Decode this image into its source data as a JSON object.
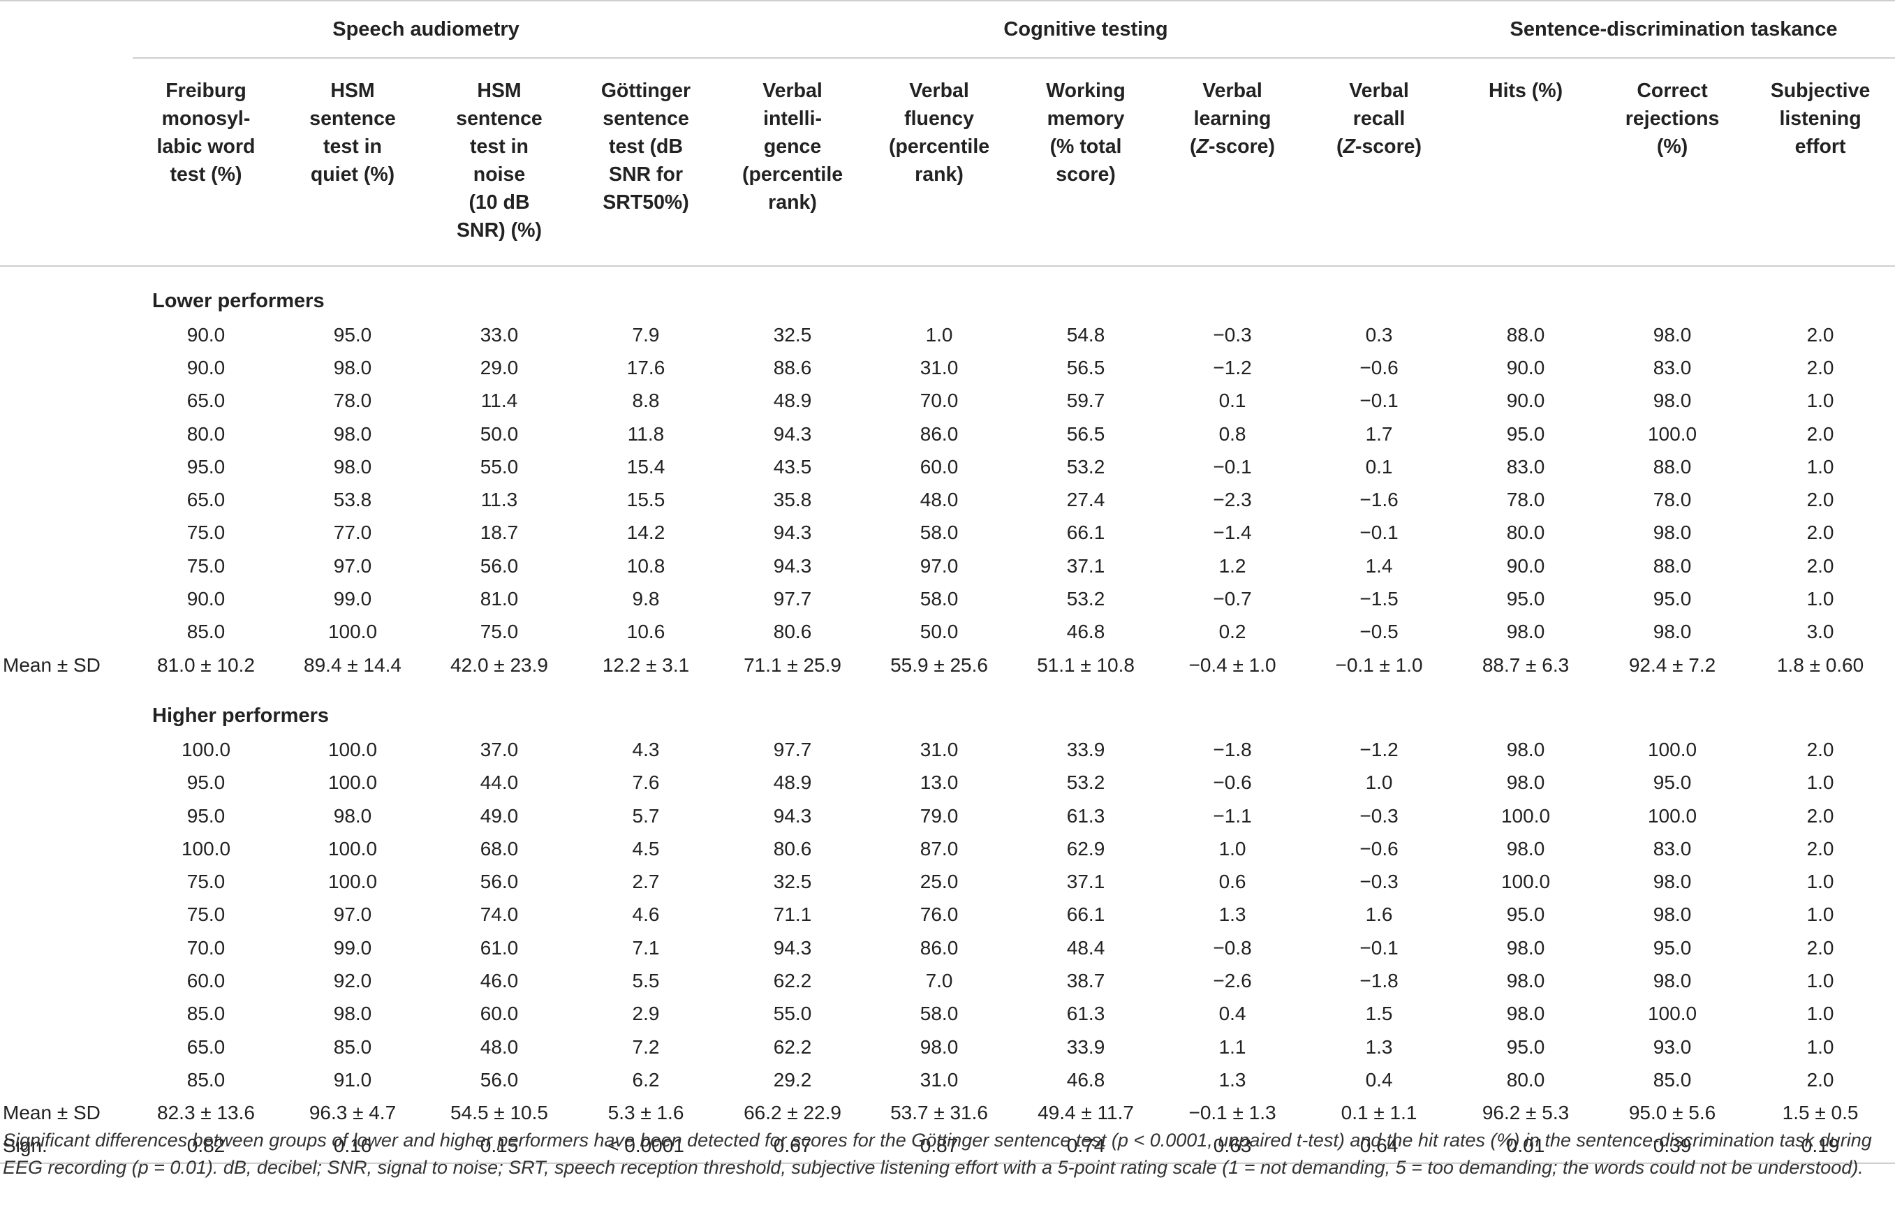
{
  "groups": {
    "speech": "Speech audiometry",
    "cognitive": "Cognitive testing",
    "sentence": "Sentence-discrimination taskance"
  },
  "columns": [
    [
      "Freiburg",
      "monosyl-",
      "labic word",
      "test (%)"
    ],
    [
      "HSM",
      "sentence",
      "test in",
      "quiet (%)"
    ],
    [
      "HSM",
      "sentence",
      "test in",
      "noise",
      "(10 dB",
      "SNR) (%)"
    ],
    [
      "Göttinger",
      "sentence",
      "test (dB",
      "SNR for",
      "SRT50%)"
    ],
    [
      "Verbal",
      "intelli-",
      "gence",
      "(percentile",
      "rank)"
    ],
    [
      "Verbal",
      "fluency",
      "(percentile",
      "rank)"
    ],
    [
      "Working",
      "memory",
      "(% total",
      "score)"
    ],
    [
      "Verbal",
      "learning",
      "(Z-score)"
    ],
    [
      "Verbal",
      "recall",
      "(Z-score)"
    ],
    [
      "Hits (%)"
    ],
    [
      "Correct",
      "rejections",
      "(%)"
    ],
    [
      "Subjective",
      "listening",
      "effort"
    ]
  ],
  "lower": {
    "label": "Lower performers",
    "rows": [
      [
        "90.0",
        "95.0",
        "33.0",
        "7.9",
        "32.5",
        "1.0",
        "54.8",
        "−0.3",
        "0.3",
        "88.0",
        "98.0",
        "2.0"
      ],
      [
        "90.0",
        "98.0",
        "29.0",
        "17.6",
        "88.6",
        "31.0",
        "56.5",
        "−1.2",
        "−0.6",
        "90.0",
        "83.0",
        "2.0"
      ],
      [
        "65.0",
        "78.0",
        "11.4",
        "8.8",
        "48.9",
        "70.0",
        "59.7",
        "0.1",
        "−0.1",
        "90.0",
        "98.0",
        "1.0"
      ],
      [
        "80.0",
        "98.0",
        "50.0",
        "11.8",
        "94.3",
        "86.0",
        "56.5",
        "0.8",
        "1.7",
        "95.0",
        "100.0",
        "2.0"
      ],
      [
        "95.0",
        "98.0",
        "55.0",
        "15.4",
        "43.5",
        "60.0",
        "53.2",
        "−0.1",
        "0.1",
        "83.0",
        "88.0",
        "1.0"
      ],
      [
        "65.0",
        "53.8",
        "11.3",
        "15.5",
        "35.8",
        "48.0",
        "27.4",
        "−2.3",
        "−1.6",
        "78.0",
        "78.0",
        "2.0"
      ],
      [
        "75.0",
        "77.0",
        "18.7",
        "14.2",
        "94.3",
        "58.0",
        "66.1",
        "−1.4",
        "−0.1",
        "80.0",
        "98.0",
        "2.0"
      ],
      [
        "75.0",
        "97.0",
        "56.0",
        "10.8",
        "94.3",
        "97.0",
        "37.1",
        "1.2",
        "1.4",
        "90.0",
        "88.0",
        "2.0"
      ],
      [
        "90.0",
        "99.0",
        "81.0",
        "9.8",
        "97.7",
        "58.0",
        "53.2",
        "−0.7",
        "−1.5",
        "95.0",
        "95.0",
        "1.0"
      ],
      [
        "85.0",
        "100.0",
        "75.0",
        "10.6",
        "80.6",
        "50.0",
        "46.8",
        "0.2",
        "−0.5",
        "98.0",
        "98.0",
        "3.0"
      ]
    ],
    "mean_label": "Mean ± SD",
    "mean": [
      "81.0 ± 10.2",
      "89.4 ± 14.4",
      "42.0 ± 23.9",
      "12.2 ± 3.1",
      "71.1 ± 25.9",
      "55.9 ± 25.6",
      "51.1 ± 10.8",
      "−0.4 ± 1.0",
      "−0.1 ± 1.0",
      "88.7 ± 6.3",
      "92.4 ± 7.2",
      "1.8 ± 0.60"
    ]
  },
  "higher": {
    "label": "Higher performers",
    "rows": [
      [
        "100.0",
        "100.0",
        "37.0",
        "4.3",
        "97.7",
        "31.0",
        "33.9",
        "−1.8",
        "−1.2",
        "98.0",
        "100.0",
        "2.0"
      ],
      [
        "95.0",
        "100.0",
        "44.0",
        "7.6",
        "48.9",
        "13.0",
        "53.2",
        "−0.6",
        "1.0",
        "98.0",
        "95.0",
        "1.0"
      ],
      [
        "95.0",
        "98.0",
        "49.0",
        "5.7",
        "94.3",
        "79.0",
        "61.3",
        "−1.1",
        "−0.3",
        "100.0",
        "100.0",
        "2.0"
      ],
      [
        "100.0",
        "100.0",
        "68.0",
        "4.5",
        "80.6",
        "87.0",
        "62.9",
        "1.0",
        "−0.6",
        "98.0",
        "83.0",
        "2.0"
      ],
      [
        "75.0",
        "100.0",
        "56.0",
        "2.7",
        "32.5",
        "25.0",
        "37.1",
        "0.6",
        "−0.3",
        "100.0",
        "98.0",
        "1.0"
      ],
      [
        "75.0",
        "97.0",
        "74.0",
        "4.6",
        "71.1",
        "76.0",
        "66.1",
        "1.3",
        "1.6",
        "95.0",
        "98.0",
        "1.0"
      ],
      [
        "70.0",
        "99.0",
        "61.0",
        "7.1",
        "94.3",
        "86.0",
        "48.4",
        "−0.8",
        "−0.1",
        "98.0",
        "95.0",
        "2.0"
      ],
      [
        "60.0",
        "92.0",
        "46.0",
        "5.5",
        "62.2",
        "7.0",
        "38.7",
        "−2.6",
        "−1.8",
        "98.0",
        "98.0",
        "1.0"
      ],
      [
        "85.0",
        "98.0",
        "60.0",
        "2.9",
        "55.0",
        "58.0",
        "61.3",
        "0.4",
        "1.5",
        "98.0",
        "100.0",
        "1.0"
      ],
      [
        "65.0",
        "85.0",
        "48.0",
        "7.2",
        "62.2",
        "98.0",
        "33.9",
        "1.1",
        "1.3",
        "95.0",
        "93.0",
        "1.0"
      ],
      [
        "85.0",
        "91.0",
        "56.0",
        "6.2",
        "29.2",
        "31.0",
        "46.8",
        "1.3",
        "0.4",
        "80.0",
        "85.0",
        "2.0"
      ]
    ],
    "mean_label": "Mean ± SD",
    "mean": [
      "82.3 ± 13.6",
      "96.3 ± 4.7",
      "54.5 ± 10.5",
      "5.3 ± 1.6",
      "66.2 ± 22.9",
      "53.7 ± 31.6",
      "49.4 ± 11.7",
      "−0.1 ± 1.3",
      "0.1 ± 1.1",
      "96.2 ± 5.3",
      "95.0 ± 5.6",
      "1.5 ± 0.5"
    ]
  },
  "sign": {
    "label": "Sign.",
    "values": [
      "0.82",
      "0.16",
      "0.15",
      "< 0.0001",
      "0.67",
      "0.87",
      "0.74",
      "0.63",
      "0.64",
      "0.01",
      "0.39",
      "0.19"
    ]
  },
  "footnote": "Significant differences between groups of lower and higher performers have been detected for scores for the Göttinger sentence test (p < 0.0001, unpaired t-test) and the hit rates (%) in the sentence-discrimination task during EEG recording (p = 0.01). dB, decibel; SNR, signal to noise; SRT, speech reception threshold, subjective listening effort with a 5-point rating scale (1 = not demanding, 5 = too demanding; the words could not be understood)."
}
